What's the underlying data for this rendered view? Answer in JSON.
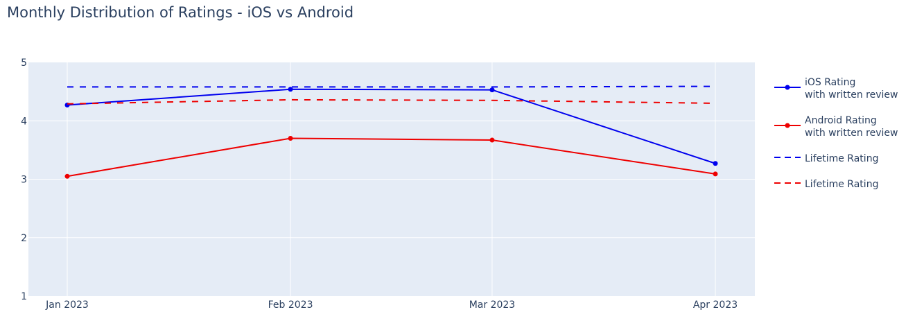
{
  "chart_data": {
    "type": "line",
    "title": "Monthly Distribution of Ratings - iOS vs Android",
    "xlabel": "",
    "ylabel": "",
    "x": [
      "Jan 2023",
      "Feb 2023",
      "Mar 2023",
      "Apr 2023"
    ],
    "x_days": [
      0,
      31,
      59,
      90
    ],
    "ylim": [
      1,
      5
    ],
    "yticks": [
      1,
      2,
      3,
      4,
      5
    ],
    "grid": true,
    "legend_position": "right",
    "series": [
      {
        "name": "iOS Rating with written review",
        "legend_lines": [
          "iOS Rating",
          "with written review"
        ],
        "color": "#0000ee",
        "dash": "solid",
        "markers": true,
        "values": [
          4.27,
          4.54,
          4.53,
          3.27
        ]
      },
      {
        "name": "Android Rating with written review",
        "legend_lines": [
          "Android Rating",
          "with written review"
        ],
        "color": "#ee0000",
        "dash": "solid",
        "markers": true,
        "values": [
          3.05,
          3.7,
          3.67,
          3.09
        ]
      },
      {
        "name": "Lifetime Rating",
        "legend_lines": [
          "Lifetime Rating"
        ],
        "color": "#0000ee",
        "dash": "dash",
        "markers": false,
        "values": [
          4.58,
          4.58,
          4.58,
          4.59
        ]
      },
      {
        "name": "Lifetime Rating",
        "legend_lines": [
          "Lifetime Rating"
        ],
        "color": "#ee0000",
        "dash": "dash",
        "markers": false,
        "values": [
          4.29,
          4.36,
          4.35,
          4.3
        ]
      }
    ],
    "colors": {
      "plot_bg": "#e5ecf6",
      "grid": "#ffffff",
      "text": "#2a3f5f"
    }
  }
}
